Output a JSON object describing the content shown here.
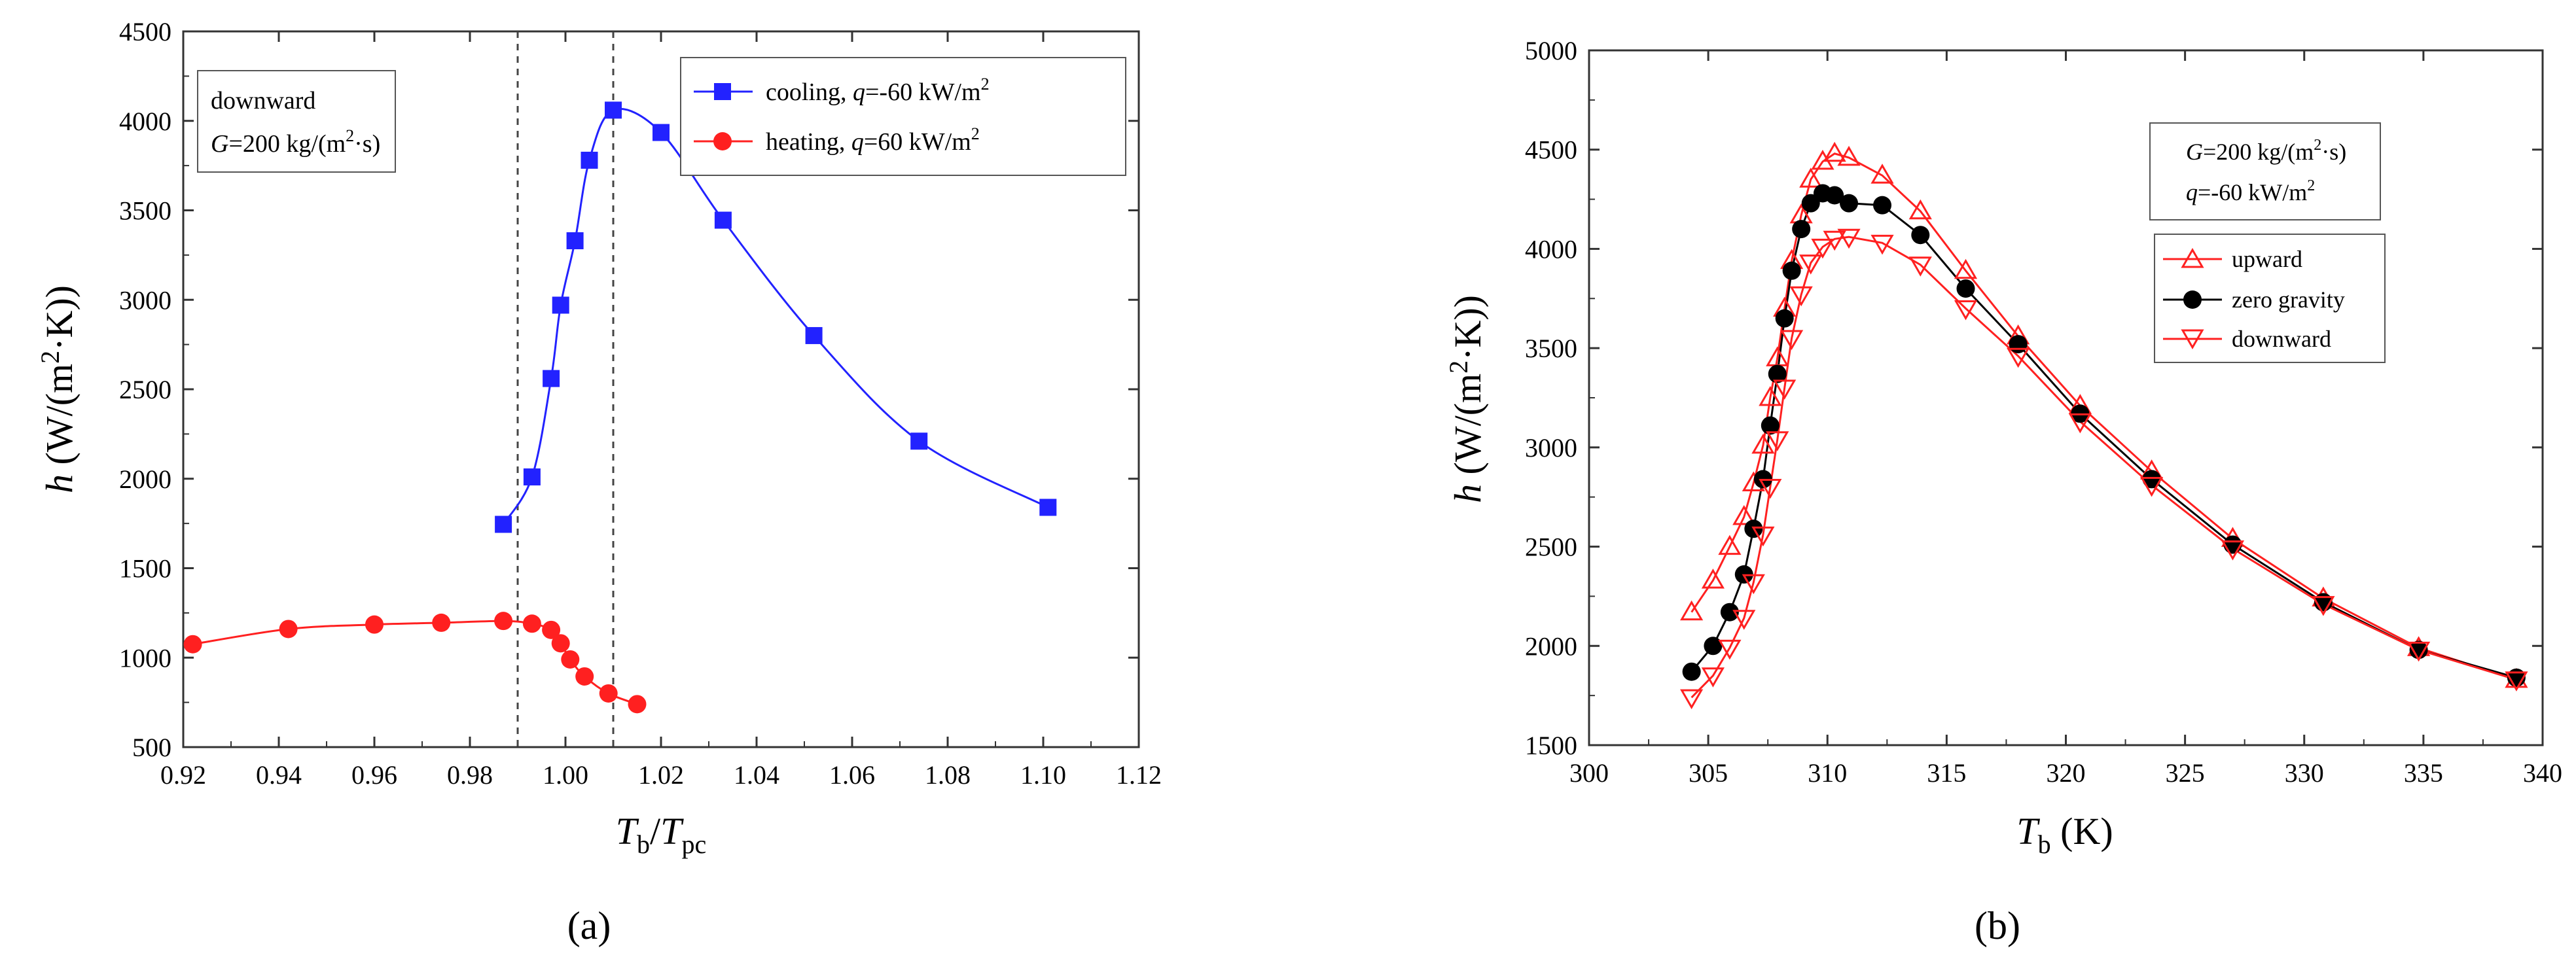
{
  "colors": {
    "blue": "#2222ff",
    "red": "#ff2020",
    "red_dark": "#e00000",
    "black": "#000000",
    "axis": "#333333"
  },
  "chart_data": [
    {
      "type": "line",
      "panel_label": "(a)",
      "xlabel": {
        "main": "T",
        "sub": "b",
        "sep": "/",
        "main2": "T",
        "sub2": "pc"
      },
      "ylabel": {
        "h": "h",
        "unit": "(W/(m",
        "sup": "2",
        "unit2": "·K))"
      },
      "xlim": [
        0.92,
        1.12
      ],
      "ylim": [
        500,
        4500
      ],
      "x_ticks": [
        0.92,
        0.94,
        0.96,
        0.98,
        1.0,
        1.02,
        1.04,
        1.06,
        1.08,
        1.1,
        1.12
      ],
      "x_tick_labels": [
        "0.92",
        "0.94",
        "0.96",
        "0.98",
        "1.00",
        "1.02",
        "1.04",
        "1.06",
        "1.08",
        "1.10",
        "1.12"
      ],
      "y_ticks": [
        500,
        1000,
        1500,
        2000,
        2500,
        3000,
        3500,
        4000,
        4500
      ],
      "y_tick_labels": [
        "500",
        "1000",
        "1500",
        "2000",
        "2500",
        "3000",
        "3500",
        "4000",
        "4500"
      ],
      "vlines": [
        0.99,
        1.01
      ],
      "annotation": {
        "line1": "downward",
        "g": "G",
        "line2": "=200 kg/(m",
        "sup": "2",
        "line2b": "·s)"
      },
      "series": [
        {
          "name": "cooling",
          "legend": {
            "pre": "cooling, ",
            "q": "q",
            "mid": "=-60 kW/m",
            "sup": "2"
          },
          "marker": "square",
          "color": "#2222ff",
          "x": [
            0.987,
            0.993,
            0.997,
            0.999,
            1.002,
            1.005,
            1.01,
            1.02,
            1.033,
            1.052,
            1.074,
            1.101
          ],
          "y": [
            1745,
            2010,
            2560,
            2970,
            3330,
            3780,
            4060,
            3935,
            3445,
            2800,
            2210,
            1840
          ]
        },
        {
          "name": "heating",
          "legend": {
            "pre": "heating, ",
            "q": "q",
            "mid": "=60 kW/m",
            "sup": "2"
          },
          "marker": "circle",
          "color": "#ff2020",
          "x": [
            0.922,
            0.942,
            0.96,
            0.974,
            0.987,
            0.993,
            0.997,
            0.999,
            1.001,
            1.004,
            1.009,
            1.015
          ],
          "y": [
            1075,
            1160,
            1185,
            1195,
            1205,
            1190,
            1155,
            1080,
            990,
            895,
            800,
            740
          ]
        }
      ]
    },
    {
      "type": "line",
      "panel_label": "(b)",
      "xlabel": {
        "main": "T",
        "sub": "b",
        "unit": " (K)"
      },
      "ylabel": {
        "h": "h",
        "unit": "(W/(m",
        "sup": "2",
        "unit2": "·K))"
      },
      "xlim": [
        300,
        340
      ],
      "ylim": [
        1500,
        5000
      ],
      "x_ticks": [
        300,
        305,
        310,
        315,
        320,
        325,
        330,
        335,
        340
      ],
      "x_tick_labels": [
        "300",
        "305",
        "310",
        "315",
        "320",
        "325",
        "330",
        "335",
        "340"
      ],
      "y_ticks": [
        1500,
        2000,
        2500,
        3000,
        3500,
        4000,
        4500,
        5000
      ],
      "y_tick_labels": [
        "1500",
        "2000",
        "2500",
        "3000",
        "3500",
        "4000",
        "4500",
        "5000"
      ],
      "annotation": {
        "g": "G",
        "line1": "=200 kg/(m",
        "sup": "2",
        "line1b": "·s)",
        "q": "q",
        "line2": "=-60 kW/m",
        "sup2": "2"
      },
      "series": [
        {
          "name": "upward",
          "marker": "triangle-up",
          "color": "#ff2020",
          "x": [
            304.3,
            305.2,
            305.9,
            306.5,
            306.9,
            307.3,
            307.6,
            307.9,
            308.2,
            308.5,
            308.9,
            309.3,
            309.8,
            310.3,
            310.9,
            312.3,
            313.9,
            315.8,
            318.0,
            320.6,
            323.6,
            327.0,
            330.8,
            334.8,
            338.9
          ],
          "y": [
            2170,
            2330,
            2500,
            2650,
            2820,
            3010,
            3250,
            3450,
            3700,
            3940,
            4170,
            4350,
            4440,
            4480,
            4460,
            4370,
            4190,
            3890,
            3560,
            3210,
            2880,
            2540,
            2240,
            1990,
            1830
          ]
        },
        {
          "name": "zero gravity",
          "marker": "circle",
          "color": "#000000",
          "x": [
            304.3,
            305.2,
            305.9,
            306.5,
            306.9,
            307.3,
            307.6,
            307.9,
            308.2,
            308.5,
            308.9,
            309.3,
            309.8,
            310.3,
            310.9,
            312.3,
            313.9,
            315.8,
            318.0,
            320.6,
            323.6,
            327.0,
            330.8,
            334.8,
            338.9
          ],
          "y": [
            1870,
            2000,
            2170,
            2360,
            2590,
            2840,
            3110,
            3370,
            3650,
            3890,
            4100,
            4230,
            4280,
            4270,
            4230,
            4220,
            4070,
            3800,
            3520,
            3170,
            2840,
            2510,
            2220,
            1980,
            1840
          ]
        },
        {
          "name": "downward",
          "marker": "triangle-down",
          "color": "#ff2020",
          "x": [
            304.3,
            305.2,
            305.9,
            306.5,
            306.9,
            307.3,
            307.6,
            307.9,
            308.2,
            308.5,
            308.9,
            309.3,
            309.8,
            310.3,
            310.9,
            312.3,
            313.9,
            315.8,
            318.0,
            320.6,
            323.6,
            327.0,
            330.8,
            334.8,
            338.9
          ],
          "y": [
            1740,
            1850,
            1990,
            2140,
            2320,
            2560,
            2800,
            3040,
            3300,
            3550,
            3770,
            3930,
            4010,
            4050,
            4060,
            4030,
            3920,
            3700,
            3460,
            3130,
            2810,
            2490,
            2210,
            1980,
            1830
          ]
        }
      ]
    }
  ]
}
